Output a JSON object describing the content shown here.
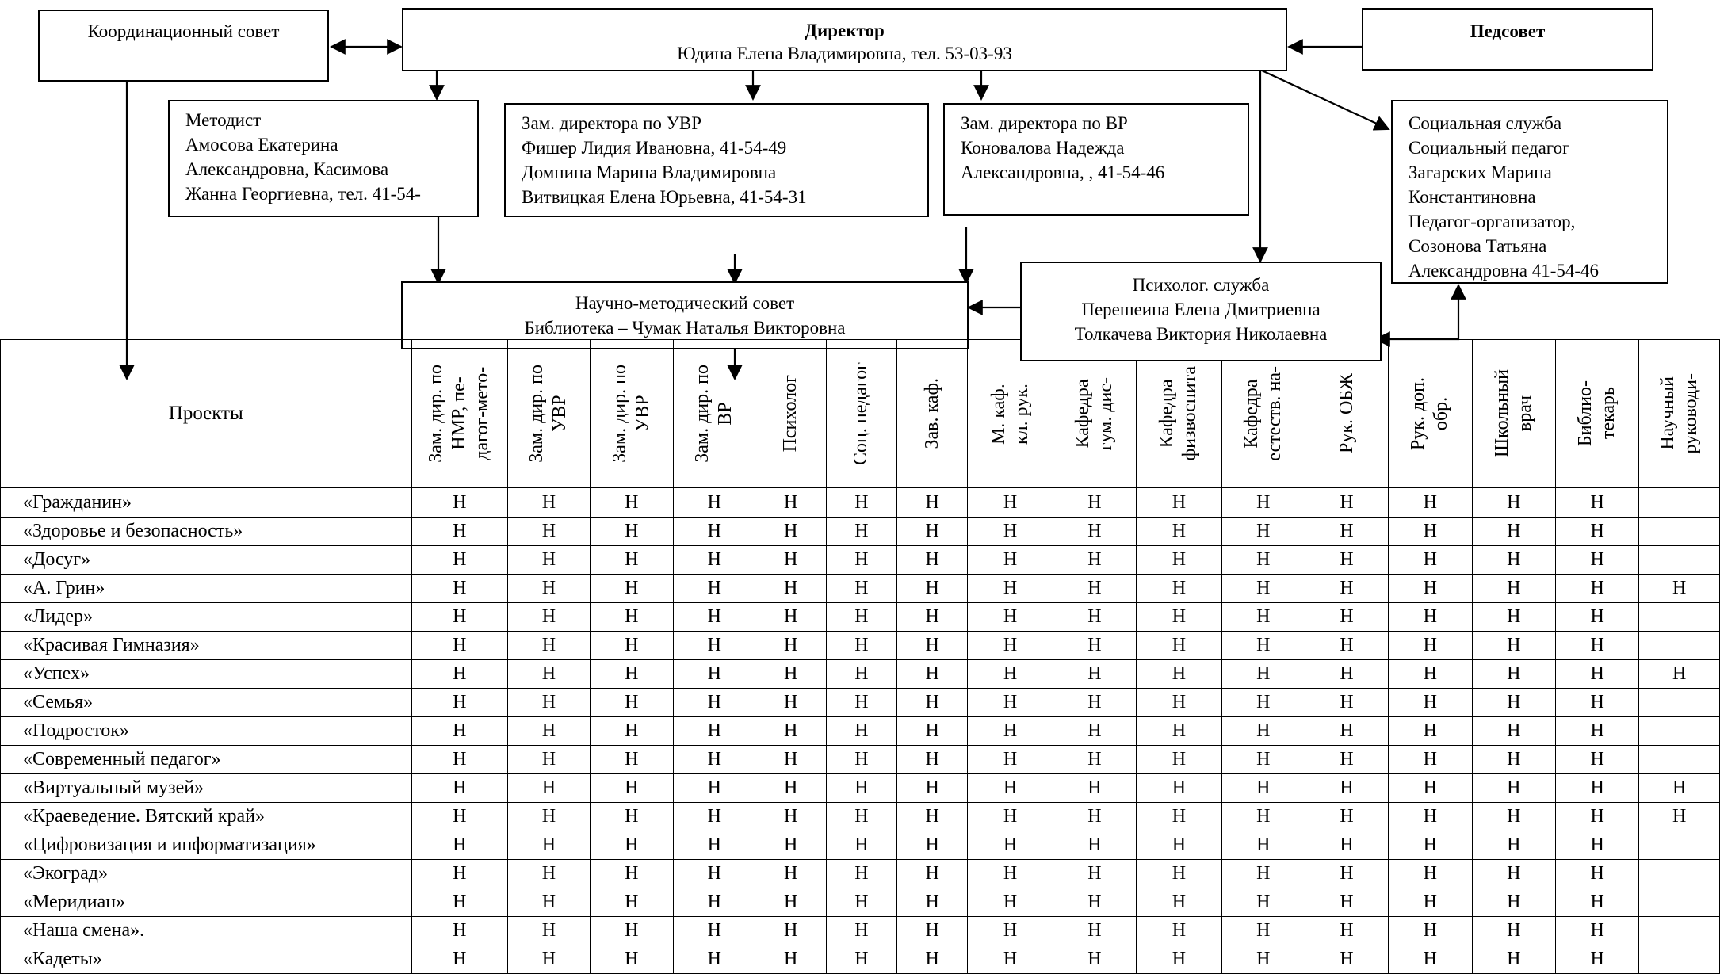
{
  "boxes": {
    "coord": "Координационный совет",
    "director_title": "Директор",
    "director_name": "Юдина Елена Владимировна, тел. 53-03-93",
    "pedsovet": "Педсовет",
    "metodist": [
      "Методист",
      "Амосова Екатерина",
      "Александровна, Касимова",
      "Жанна Георгиевна, тел. 41-54-"
    ],
    "uvr": [
      "Зам. директора по УВР",
      "Фишер Лидия Ивановна, 41-54-49",
      "Домнина Марина Владимировна",
      "Витвицкая Елена Юрьевна, 41-54-31"
    ],
    "vr": [
      "Зам. директора по ВР",
      "Коновалова Надежда",
      "Александровна, , 41-54-46"
    ],
    "social": [
      "Социальная служба",
      "Социальный педагог",
      "Загарских Марина",
      "Константиновна",
      "Педагог-организатор,",
      "Созонова Татьяна",
      "Александровна  41-54-46"
    ],
    "nms": [
      "Научно-методический совет",
      "Библиотека – Чумак Наталья Викторовна"
    ],
    "psych": [
      "Психолог. служба",
      "Перешеина Елена Дмитриевна",
      "Толкачева Виктория Николаевна"
    ]
  },
  "table": {
    "first_header": "Проекты",
    "columns": [
      "Зам. дир. по\nНМР, пе-\nдагог-мето-",
      "Зам. дир. по\nУВР",
      "Зам. дир. по\nУВР",
      "Зам. дир. по\nВР",
      "Психолог",
      "Соц. педагог",
      "Зав. каф.",
      "М. каф.\nкл. рук.",
      "Кафедра\nгум. дис-",
      "Кафедра\nфизвоспита",
      "Кафедра\nестеств. на-",
      "Рук. ОБЖ",
      "Рук. доп.\nобр.",
      "Школьный\nврач",
      "Библио-\nтекарь",
      "Научный\nруководи-"
    ],
    "rows": [
      {
        "name": "«Гражданин»",
        "cells": [
          "Н",
          "Н",
          "Н",
          "Н",
          "Н",
          "Н",
          "Н",
          "Н",
          "Н",
          "Н",
          "Н",
          "Н",
          "Н",
          "Н",
          "Н",
          ""
        ]
      },
      {
        "name": "«Здоровье и безопасность»",
        "cells": [
          "Н",
          "Н",
          "Н",
          "Н",
          "Н",
          "Н",
          "Н",
          "Н",
          "Н",
          "Н",
          "Н",
          "Н",
          "Н",
          "Н",
          "Н",
          ""
        ]
      },
      {
        "name": "«Досуг»",
        "cells": [
          "Н",
          "Н",
          "Н",
          "Н",
          "Н",
          "Н",
          "Н",
          "Н",
          "Н",
          "Н",
          "Н",
          "Н",
          "Н",
          "Н",
          "Н",
          ""
        ]
      },
      {
        "name": "«А. Грин»",
        "cells": [
          "Н",
          "Н",
          "Н",
          "Н",
          "Н",
          "Н",
          "Н",
          "Н",
          "Н",
          "Н",
          "Н",
          "Н",
          "Н",
          "Н",
          "Н",
          "Н"
        ]
      },
      {
        "name": "«Лидер»",
        "cells": [
          "Н",
          "Н",
          "Н",
          "Н",
          "Н",
          "Н",
          "Н",
          "Н",
          "Н",
          "Н",
          "Н",
          "Н",
          "Н",
          "Н",
          "Н",
          ""
        ]
      },
      {
        "name": "«Красивая Гимназия»",
        "cells": [
          "Н",
          "Н",
          "Н",
          "Н",
          "Н",
          "Н",
          "Н",
          "Н",
          "Н",
          "Н",
          "Н",
          "Н",
          "Н",
          "Н",
          "Н",
          ""
        ]
      },
      {
        "name": "«Успех»",
        "cells": [
          "Н",
          "Н",
          "Н",
          "Н",
          "Н",
          "Н",
          "Н",
          "Н",
          "Н",
          "Н",
          "Н",
          "Н",
          "Н",
          "Н",
          "Н",
          "Н"
        ]
      },
      {
        "name": "«Семья»",
        "cells": [
          "Н",
          "Н",
          "Н",
          "Н",
          "Н",
          "Н",
          "Н",
          "Н",
          "Н",
          "Н",
          "Н",
          "Н",
          "Н",
          "Н",
          "Н",
          ""
        ]
      },
      {
        "name": "«Подросток»",
        "cells": [
          "Н",
          "Н",
          "Н",
          "Н",
          "Н",
          "Н",
          "Н",
          "Н",
          "Н",
          "Н",
          "Н",
          "Н",
          "Н",
          "Н",
          "Н",
          ""
        ]
      },
      {
        "name": "«Современный педагог»",
        "cells": [
          "Н",
          "Н",
          "Н",
          "Н",
          "Н",
          "Н",
          "Н",
          "Н",
          "Н",
          "Н",
          "Н",
          "Н",
          "Н",
          "Н",
          "Н",
          ""
        ]
      },
      {
        "name": "«Виртуальный музей»",
        "cells": [
          "Н",
          "Н",
          "Н",
          "Н",
          "Н",
          "Н",
          "Н",
          "Н",
          "Н",
          "Н",
          "Н",
          "Н",
          "Н",
          "Н",
          "Н",
          "Н"
        ]
      },
      {
        "name": "«Краеведение. Вятский край»",
        "cells": [
          "Н",
          "Н",
          "Н",
          "Н",
          "Н",
          "Н",
          "Н",
          "Н",
          "Н",
          "Н",
          "Н",
          "Н",
          "Н",
          "Н",
          "Н",
          "Н"
        ]
      },
      {
        "name": "«Цифровизация и информатизация»",
        "cells": [
          "Н",
          "Н",
          "Н",
          "Н",
          "Н",
          "Н",
          "Н",
          "Н",
          "Н",
          "Н",
          "Н",
          "Н",
          "Н",
          "Н",
          "Н",
          ""
        ]
      },
      {
        "name": "«Экоград»",
        "cells": [
          "Н",
          "Н",
          "Н",
          "Н",
          "Н",
          "Н",
          "Н",
          "Н",
          "Н",
          "Н",
          "Н",
          "Н",
          "Н",
          "Н",
          "Н",
          ""
        ]
      },
      {
        "name": "«Меридиан»",
        "cells": [
          "Н",
          "Н",
          "Н",
          "Н",
          "Н",
          "Н",
          "Н",
          "Н",
          "Н",
          "Н",
          "Н",
          "Н",
          "Н",
          "Н",
          "Н",
          ""
        ]
      },
      {
        "name": "«Наша смена».",
        "cells": [
          "Н",
          "Н",
          "Н",
          "Н",
          "Н",
          "Н",
          "Н",
          "Н",
          "Н",
          "Н",
          "Н",
          "Н",
          "Н",
          "Н",
          "Н",
          ""
        ]
      },
      {
        "name": "«Кадеты»",
        "cells": [
          "Н",
          "Н",
          "Н",
          "Н",
          "Н",
          "Н",
          "Н",
          "Н",
          "Н",
          "Н",
          "Н",
          "Н",
          "Н",
          "Н",
          "Н",
          ""
        ]
      }
    ]
  }
}
